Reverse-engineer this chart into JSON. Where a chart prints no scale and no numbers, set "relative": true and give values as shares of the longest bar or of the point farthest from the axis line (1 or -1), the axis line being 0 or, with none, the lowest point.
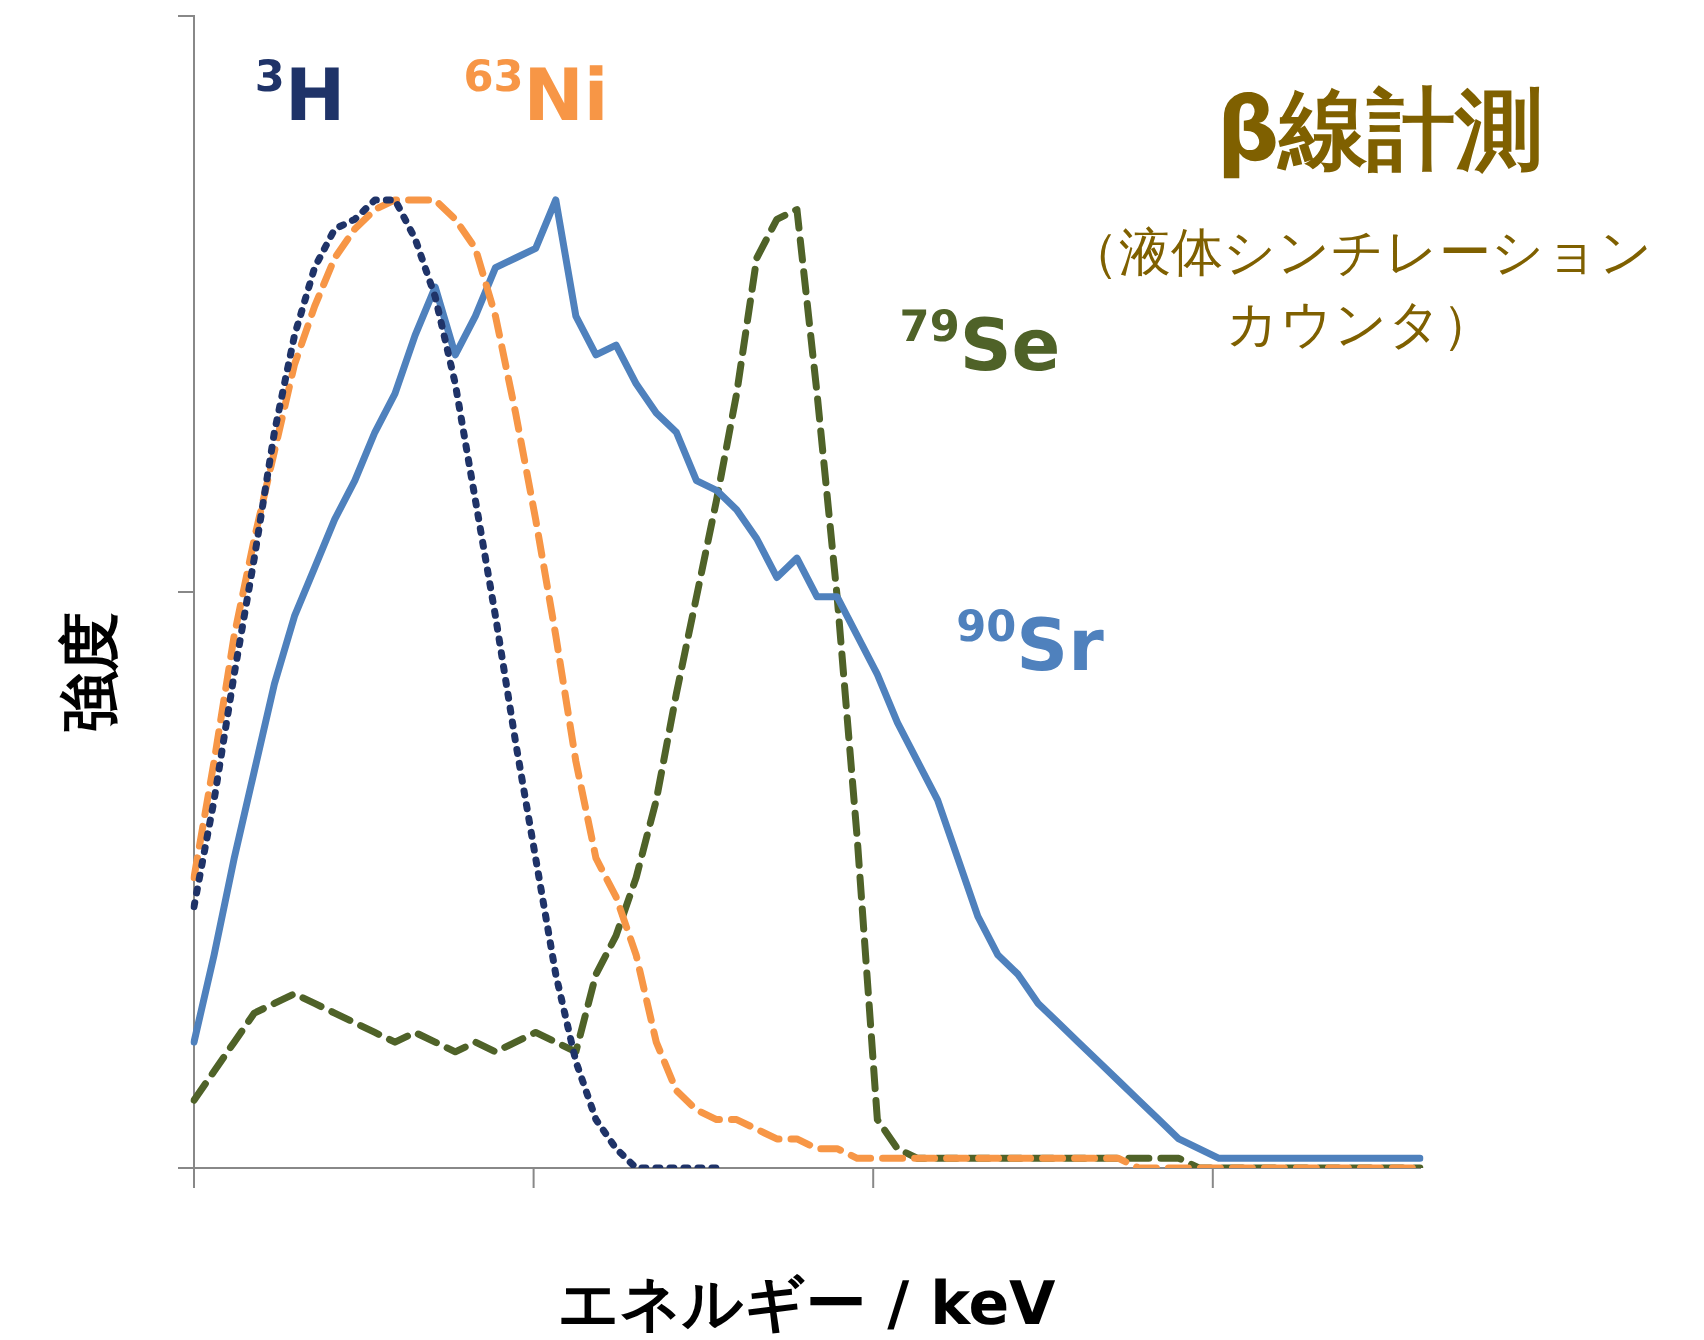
{
  "chart_data": {
    "type": "line",
    "title": "β線計測",
    "subtitle": "（液体シンチレーションカウンタ）",
    "xlabel": "エネルギー / keV",
    "ylabel": "強度",
    "relative": true,
    "grid": false,
    "legend": false,
    "marker": "none",
    "categories": [
      null,
      null,
      null,
      null,
      null,
      null,
      null,
      null,
      null,
      null,
      null,
      null,
      null,
      null,
      null,
      null,
      null,
      null,
      null,
      null,
      null,
      null,
      null,
      null,
      null,
      null,
      null,
      null,
      null,
      null,
      null,
      null,
      null,
      null,
      null,
      null,
      null,
      null,
      null,
      null,
      null,
      null,
      null,
      null,
      null,
      null,
      null,
      null,
      null,
      null,
      null,
      null,
      null,
      null,
      null,
      null,
      null,
      null,
      null,
      null,
      null,
      null
    ],
    "series": [
      {
        "name": "$^{3}$H",
        "color": "#1f3368",
        "line_style": "dotted",
        "values": [
          0.27,
          0.38,
          0.51,
          0.63,
          0.76,
          0.86,
          0.93,
          0.97,
          0.98,
          1.0,
          1.0,
          0.96,
          0.9,
          0.81,
          0.69,
          0.57,
          0.44,
          0.32,
          0.2,
          0.11,
          0.05,
          0.02,
          0,
          0,
          0,
          0,
          0,
          null,
          null,
          null,
          null,
          null,
          null,
          null,
          null,
          null,
          null,
          null,
          null,
          null,
          null,
          null,
          null,
          null,
          null,
          null,
          null,
          null,
          null,
          null,
          null,
          null,
          null,
          null,
          null,
          null,
          null,
          null,
          null,
          null,
          null,
          null
        ]
      },
      {
        "name": "$^{63}$Ni",
        "color": "#f79646",
        "line_style": "dashed",
        "values": [
          0.3,
          0.42,
          0.55,
          0.65,
          0.74,
          0.83,
          0.89,
          0.94,
          0.97,
          0.99,
          1.0,
          1.0,
          1.0,
          0.98,
          0.95,
          0.88,
          0.78,
          0.67,
          0.55,
          0.42,
          0.32,
          0.28,
          0.22,
          0.13,
          0.08,
          0.06,
          0.05,
          0.05,
          0.04,
          0.03,
          0.03,
          0.02,
          0.02,
          0.01,
          0.01,
          0.01,
          0.01,
          0.01,
          0.01,
          0.01,
          0.01,
          0.01,
          0.01,
          0.01,
          0.01,
          0.01,
          0.01,
          0,
          0,
          0,
          0,
          0,
          0,
          0,
          0,
          0,
          0,
          0,
          0,
          0,
          0,
          0
        ]
      },
      {
        "name": "$^{90}$Sr",
        "color": "#4f81bd",
        "line_style": "solid",
        "values": [
          0.13,
          0.22,
          0.32,
          0.41,
          0.5,
          0.57,
          0.62,
          0.67,
          0.71,
          0.76,
          0.8,
          0.86,
          0.91,
          0.84,
          0.88,
          0.93,
          0.94,
          0.95,
          1.0,
          0.88,
          0.84,
          0.85,
          0.81,
          0.78,
          0.76,
          0.71,
          0.7,
          0.68,
          0.65,
          0.61,
          0.63,
          0.59,
          0.59,
          0.55,
          0.51,
          0.46,
          0.42,
          0.38,
          0.32,
          0.26,
          0.22,
          0.2,
          0.17,
          0.15,
          0.13,
          0.11,
          0.09,
          0.07,
          0.05,
          0.03,
          0.02,
          0.01,
          0.01,
          0.01,
          0.01,
          0.01,
          0.01,
          0.01,
          0.01,
          0.01,
          0.01,
          0.01
        ]
      },
      {
        "name": "$^{79}$Se",
        "color": "#4f6228",
        "line_style": "dashed",
        "values": [
          0.07,
          0.1,
          0.13,
          0.16,
          0.17,
          0.18,
          0.17,
          0.16,
          0.15,
          0.14,
          0.13,
          0.14,
          0.13,
          0.12,
          0.13,
          0.12,
          0.13,
          0.14,
          0.13,
          0.12,
          0.2,
          0.24,
          0.3,
          0.38,
          0.49,
          0.59,
          0.69,
          0.8,
          0.94,
          0.98,
          0.99,
          0.8,
          0.59,
          0.34,
          0.05,
          0.02,
          0.01,
          0.01,
          0.01,
          0.01,
          0.01,
          0.01,
          0.01,
          0.01,
          0.01,
          0.01,
          0.01,
          0.01,
          0.01,
          0.01,
          0,
          0,
          0,
          0,
          0,
          0,
          0,
          0,
          0,
          0,
          0,
          0
        ]
      }
    ]
  }
}
